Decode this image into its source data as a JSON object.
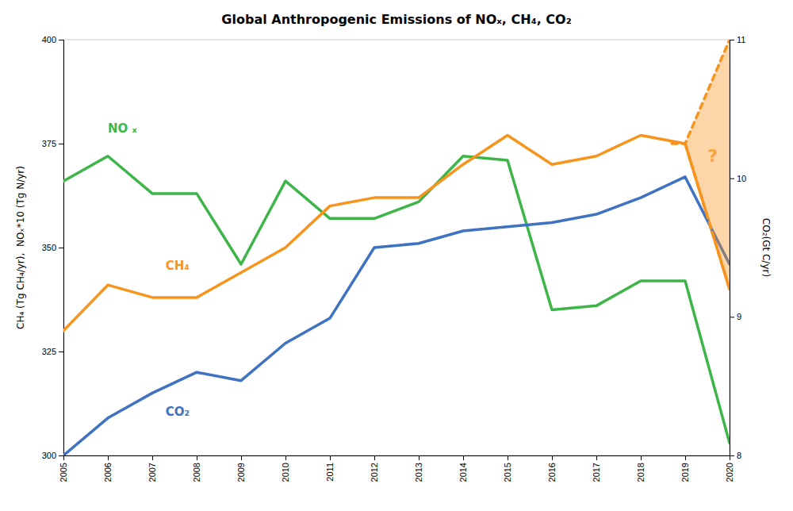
{
  "chart_data": {
    "type": "line",
    "title": "Global Anthropogenic Emissions of NOₓ, CH₄, CO₂",
    "ylabel": "CH₄ (Tg CH₄/yr),  NOₓ*10 (Tg N/yr)",
    "y2label": "CO₂(Gt C/yr)",
    "x": [
      2005,
      2006,
      2007,
      2008,
      2009,
      2010,
      2011,
      2012,
      2013,
      2014,
      2015,
      2016,
      2017,
      2018,
      2019,
      2020
    ],
    "xlim": [
      2005,
      2020
    ],
    "xticks": [
      2005,
      2006,
      2007,
      2008,
      2009,
      2010,
      2011,
      2012,
      2013,
      2014,
      2015,
      2016,
      2017,
      2018,
      2019,
      2020
    ],
    "ylim": [
      300,
      400
    ],
    "yticks": [
      300,
      325,
      350,
      375,
      400
    ],
    "y2lim": [
      8,
      11
    ],
    "y2ticks": [
      8,
      9,
      10,
      11
    ],
    "grid": false,
    "series": [
      {
        "color": "#3db549",
        "values": [
          366,
          372,
          363,
          363,
          346,
          366,
          357,
          357,
          361,
          372,
          371,
          335,
          336,
          342,
          342,
          303
        ]
      },
      {
        "color": "#f7941d",
        "values": [
          330,
          341,
          338,
          338,
          344,
          350,
          360,
          362,
          362,
          370,
          377,
          370,
          372,
          377,
          375,
          340
        ]
      },
      {
        "color": "#3f72c0",
        "values": [
          300,
          309,
          315,
          320,
          318,
          327,
          333,
          350,
          351,
          354,
          355,
          356,
          358,
          362,
          367,
          346
        ]
      },
      {
        "type": "area",
        "color": "#f7941d",
        "x": [
          2019.0,
          2020.0
        ],
        "lower": [
          375,
          340
        ],
        "upper": [
          375,
          400
        ]
      },
      {
        "color": "#f7941d",
        "line_style": "dashed",
        "x": [
          2018.7,
          2019.0,
          2020.0
        ],
        "values": [
          375,
          375,
          400
        ]
      },
      {
        "color": "#f7941d",
        "line_style": "dashed",
        "x": [
          2019.0,
          2020.0
        ],
        "values": [
          375,
          340
        ]
      }
    ],
    "annotations": [
      {
        "text": "NO ₓ",
        "x": 2006.0,
        "y": 377,
        "color": "#3db549"
      },
      {
        "text": "CH₄",
        "x": 2007.3,
        "y": 347,
        "color": "#f7941d"
      },
      {
        "text": "CO₂",
        "x": 2007.3,
        "y": 312,
        "color": "#3f72c0"
      },
      {
        "text": "?",
        "x": 2019.62,
        "y": 372,
        "color": "#f7941d"
      }
    ]
  }
}
